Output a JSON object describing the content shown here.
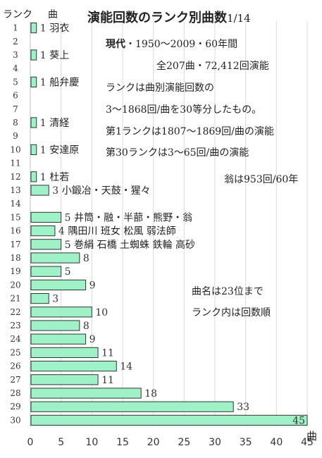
{
  "title": "演能回数のランク別曲数",
  "page": "1/14",
  "header": {
    "rank": "ランク",
    "songs": "曲"
  },
  "notes": {
    "line1_bold": "現代",
    "line1_rest": "・1950〜2009・60年間",
    "line2": "全207曲・72,412回演能",
    "line3": "ランクは曲別演能回数の",
    "line4": "3〜1868回/曲を30等分したもの。",
    "line5": "第1ランクは1807〜1869回/曲の演能",
    "line6": "第30ランクは3〜65回/曲の演能",
    "line7": "翁は953回/60年",
    "line8": "曲名は23位まで",
    "line9": "ランク内は回数順"
  },
  "colors": {
    "bar_fill": "#9ff2c8",
    "bar_stroke": "#333333",
    "grid": "#d9d9d9",
    "axis": "#bfbfbf"
  },
  "chart_data": {
    "type": "bar",
    "orientation": "horizontal",
    "title": "演能回数のランク別曲数",
    "ylabel": "ランク",
    "xlabel": "曲",
    "xlim": [
      0,
      45
    ],
    "xticks": [
      0,
      5,
      10,
      15,
      20,
      25,
      30,
      35,
      40,
      45
    ],
    "grid": "vertical",
    "categories": [
      1,
      2,
      3,
      4,
      5,
      6,
      7,
      8,
      9,
      10,
      11,
      12,
      13,
      14,
      15,
      16,
      17,
      18,
      19,
      20,
      21,
      22,
      23,
      24,
      25,
      26,
      27,
      28,
      29,
      30
    ],
    "values": [
      1,
      0,
      1,
      0,
      1,
      0,
      0,
      1,
      0,
      1,
      0,
      1,
      3,
      0,
      5,
      4,
      5,
      8,
      5,
      9,
      3,
      10,
      8,
      9,
      11,
      14,
      11,
      18,
      33,
      45
    ],
    "labels": [
      "1",
      "",
      "1",
      "",
      "1",
      "",
      "",
      "1",
      "",
      "1",
      "",
      "1",
      "3",
      "",
      "5",
      "4",
      "5",
      "8",
      "5",
      "9",
      "3",
      "10",
      "8",
      "9",
      "11",
      "14",
      "11",
      "18",
      "33",
      "45"
    ],
    "songs": [
      "羽衣",
      "",
      "葵上",
      "",
      "船弁慶",
      "",
      "",
      "清経",
      "",
      "安達原",
      "",
      "杜若",
      "小鍛冶・天鼓・猩々",
      "",
      "井筒・融・半蔀・熊野・翁",
      "隅田川 班女 松風 弱法師",
      "巻絹 石橋 土蜘蛛 鉄輪 高砂",
      "",
      "",
      "",
      "",
      "",
      "",
      "",
      "",
      "",
      "",
      "",
      "",
      ""
    ]
  }
}
